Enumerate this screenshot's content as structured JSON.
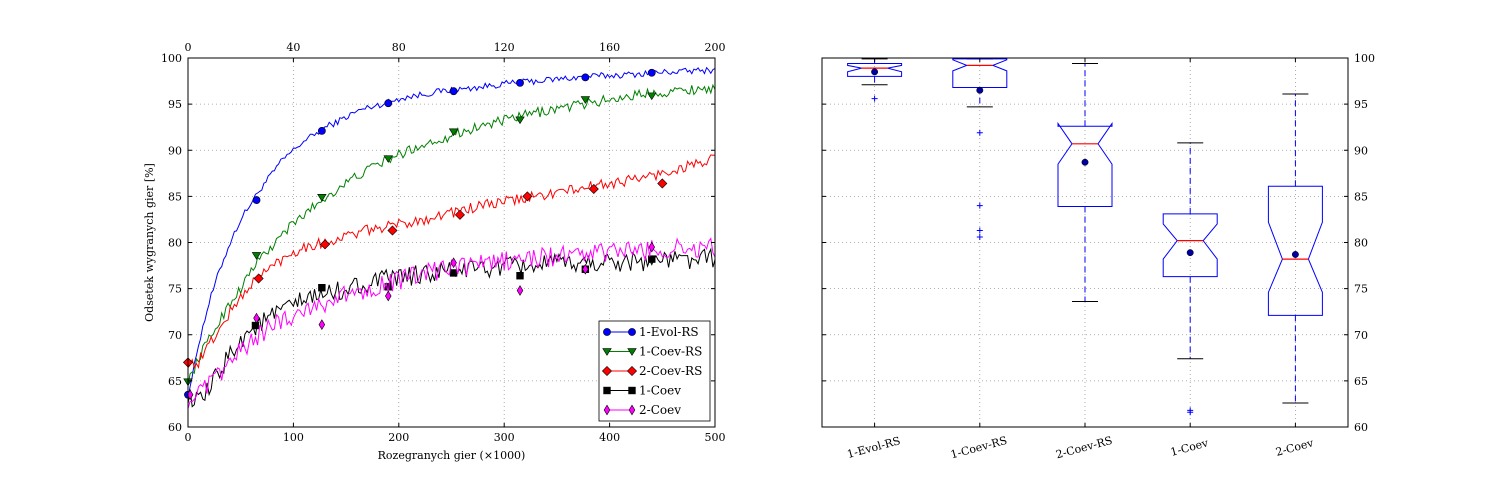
{
  "chart_data": [
    {
      "type": "line",
      "xlabel": "Rozegranych gier (×1000)",
      "ylabel": "Odsetek wygranych gier [%]",
      "xlim": [
        0,
        500
      ],
      "ylim": [
        60,
        100
      ],
      "x_ticks": [
        "0",
        "100",
        "200",
        "300",
        "400",
        "500"
      ],
      "x_top_ticks": [
        "0",
        "40",
        "80",
        "120",
        "160",
        "200"
      ],
      "x_top_lim": [
        0,
        200
      ],
      "y_ticks": [
        "60",
        "65",
        "70",
        "75",
        "80",
        "85",
        "90",
        "95",
        "100"
      ],
      "grid": true,
      "legend_position": "lower-right",
      "series": [
        {
          "name": "1-Evol-RS",
          "color": "#0000ff",
          "marker": "circle",
          "points": [
            [
              0,
              63.5
            ],
            [
              5,
              66
            ],
            [
              10,
              69
            ],
            [
              20,
              73.5
            ],
            [
              30,
              77
            ],
            [
              40,
              80
            ],
            [
              50,
              82.5
            ],
            [
              60,
              84.3
            ],
            [
              70,
              86
            ],
            [
              80,
              87.5
            ],
            [
              90,
              89
            ],
            [
              100,
              90
            ],
            [
              110,
              91
            ],
            [
              120,
              91.7
            ],
            [
              130,
              92.5
            ],
            [
              140,
              93
            ],
            [
              150,
              93.6
            ],
            [
              160,
              94.2
            ],
            [
              170,
              94.6
            ],
            [
              180,
              94.9
            ],
            [
              190,
              95.2
            ],
            [
              200,
              95.6
            ],
            [
              220,
              96
            ],
            [
              240,
              96.4
            ],
            [
              260,
              96.6
            ],
            [
              280,
              96.9
            ],
            [
              300,
              97.2
            ],
            [
              320,
              97.4
            ],
            [
              340,
              97.6
            ],
            [
              360,
              97.8
            ],
            [
              380,
              98
            ],
            [
              400,
              98.1
            ],
            [
              420,
              98.2
            ],
            [
              440,
              98.4
            ],
            [
              460,
              98.5
            ],
            [
              480,
              98.6
            ],
            [
              500,
              98.7
            ]
          ],
          "marker_points": [
            [
              0,
              63.5
            ],
            [
              65,
              84.6
            ],
            [
              127,
              92.1
            ],
            [
              190,
              95.1
            ],
            [
              252,
              96.4
            ],
            [
              315,
              97.3
            ],
            [
              377,
              97.9
            ],
            [
              440,
              98.4
            ]
          ]
        },
        {
          "name": "1-Coev-RS",
          "color": "#007f00",
          "marker": "triangle-down",
          "points": [
            [
              0,
              65
            ],
            [
              5,
              66
            ],
            [
              10,
              67.5
            ],
            [
              20,
              69.5
            ],
            [
              30,
              71.5
            ],
            [
              40,
              73.5
            ],
            [
              50,
              75
            ],
            [
              60,
              77
            ],
            [
              70,
              78.5
            ],
            [
              80,
              79.5
            ],
            [
              90,
              81
            ],
            [
              100,
              82
            ],
            [
              110,
              83
            ],
            [
              120,
              84
            ],
            [
              130,
              84.8
            ],
            [
              140,
              85.7
            ],
            [
              150,
              86.4
            ],
            [
              160,
              87.2
            ],
            [
              170,
              87.8
            ],
            [
              180,
              88.5
            ],
            [
              190,
              89
            ],
            [
              200,
              89.5
            ],
            [
              220,
              90.5
            ],
            [
              240,
              91.2
            ],
            [
              260,
              92
            ],
            [
              280,
              92.7
            ],
            [
              300,
              93.2
            ],
            [
              320,
              93.8
            ],
            [
              340,
              94.3
            ],
            [
              360,
              94.7
            ],
            [
              380,
              95.1
            ],
            [
              400,
              95.5
            ],
            [
              420,
              95.9
            ],
            [
              440,
              96.2
            ],
            [
              460,
              96.4
            ],
            [
              480,
              96.6
            ],
            [
              500,
              96.8
            ]
          ],
          "marker_points": [
            [
              0,
              64.9
            ],
            [
              65,
              78.6
            ],
            [
              127,
              84.9
            ],
            [
              190,
              89.1
            ],
            [
              252,
              92
            ],
            [
              315,
              93.3
            ],
            [
              377,
              95.5
            ],
            [
              440,
              95.9
            ]
          ]
        },
        {
          "name": "2-Coev-RS",
          "color": "#ff0000",
          "marker": "diamond",
          "points": [
            [
              0,
              67
            ],
            [
              5,
              66.8
            ],
            [
              10,
              67
            ],
            [
              20,
              69
            ],
            [
              30,
              70.5
            ],
            [
              40,
              72.5
            ],
            [
              50,
              74
            ],
            [
              60,
              75.5
            ],
            [
              70,
              76.5
            ],
            [
              80,
              77.5
            ],
            [
              90,
              78.2
            ],
            [
              100,
              79
            ],
            [
              110,
              79.5
            ],
            [
              120,
              79.8
            ],
            [
              130,
              80
            ],
            [
              140,
              80.3
            ],
            [
              150,
              80.7
            ],
            [
              160,
              81
            ],
            [
              170,
              81.3
            ],
            [
              180,
              81.6
            ],
            [
              190,
              81.7
            ],
            [
              200,
              82
            ],
            [
              220,
              82.4
            ],
            [
              240,
              83
            ],
            [
              260,
              83.5
            ],
            [
              280,
              84
            ],
            [
              300,
              84.4
            ],
            [
              320,
              84.8
            ],
            [
              340,
              85.2
            ],
            [
              360,
              85.6
            ],
            [
              380,
              86
            ],
            [
              400,
              86.4
            ],
            [
              420,
              86.8
            ],
            [
              440,
              87.2
            ],
            [
              460,
              87.8
            ],
            [
              480,
              88.5
            ],
            [
              500,
              89
            ]
          ],
          "marker_points": [
            [
              0,
              67
            ],
            [
              67,
              76.1
            ],
            [
              130,
              79.8
            ],
            [
              194,
              81.3
            ],
            [
              258,
              83
            ],
            [
              322,
              85
            ],
            [
              385,
              85.8
            ],
            [
              450,
              86.4
            ]
          ]
        },
        {
          "name": "1-Coev",
          "color": "#000000",
          "marker": "square",
          "points": [
            [
              0,
              63.5
            ],
            [
              5,
              63
            ],
            [
              10,
              62.5
            ],
            [
              20,
              64
            ],
            [
              30,
              66
            ],
            [
              40,
              68
            ],
            [
              50,
              69.5
            ],
            [
              60,
              70.5
            ],
            [
              70,
              71.3
            ],
            [
              80,
              72
            ],
            [
              90,
              72.7
            ],
            [
              100,
              73.2
            ],
            [
              110,
              73.7
            ],
            [
              120,
              74.1
            ],
            [
              130,
              74.4
            ],
            [
              140,
              74.7
            ],
            [
              150,
              75
            ],
            [
              160,
              75.3
            ],
            [
              170,
              75.6
            ],
            [
              180,
              75.8
            ],
            [
              190,
              76
            ],
            [
              200,
              76.2
            ],
            [
              220,
              76.5
            ],
            [
              240,
              76.8
            ],
            [
              260,
              77
            ],
            [
              280,
              77.2
            ],
            [
              300,
              77.3
            ],
            [
              320,
              77.5
            ],
            [
              340,
              77.6
            ],
            [
              360,
              77.7
            ],
            [
              380,
              77.8
            ],
            [
              400,
              77.9
            ],
            [
              420,
              78
            ],
            [
              440,
              78
            ],
            [
              460,
              78.1
            ],
            [
              480,
              78.2
            ],
            [
              500,
              78.2
            ]
          ],
          "marker_points": [
            [
              64,
              71
            ],
            [
              127,
              75.1
            ],
            [
              190,
              75.2
            ],
            [
              252,
              76.7
            ],
            [
              315,
              76.4
            ],
            [
              377,
              77.1
            ],
            [
              440,
              78.2
            ]
          ]
        },
        {
          "name": "2-Coev",
          "color": "#ff00ff",
          "marker": "diamond-thin",
          "points": [
            [
              0,
              63
            ],
            [
              5,
              63.2
            ],
            [
              10,
              63.5
            ],
            [
              20,
              64.5
            ],
            [
              30,
              65.8
            ],
            [
              40,
              67
            ],
            [
              50,
              68.2
            ],
            [
              60,
              69.3
            ],
            [
              70,
              70.2
            ],
            [
              80,
              71
            ],
            [
              90,
              71.6
            ],
            [
              100,
              72.2
            ],
            [
              110,
              72.7
            ],
            [
              120,
              73.1
            ],
            [
              130,
              73.5
            ],
            [
              140,
              73.9
            ],
            [
              150,
              74.3
            ],
            [
              160,
              74.6
            ],
            [
              170,
              75
            ],
            [
              180,
              75.3
            ],
            [
              190,
              75.6
            ],
            [
              200,
              75.9
            ],
            [
              220,
              76.5
            ],
            [
              240,
              77
            ],
            [
              260,
              77.4
            ],
            [
              280,
              77.7
            ],
            [
              300,
              78
            ],
            [
              320,
              78.2
            ],
            [
              340,
              78.4
            ],
            [
              360,
              78.6
            ],
            [
              380,
              78.8
            ],
            [
              400,
              79
            ],
            [
              420,
              79.1
            ],
            [
              440,
              79.2
            ],
            [
              460,
              79.3
            ],
            [
              480,
              79.4
            ],
            [
              500,
              79.4
            ]
          ],
          "marker_points": [
            [
              2,
              63.5
            ],
            [
              65,
              71.8
            ],
            [
              127,
              71.1
            ],
            [
              190,
              74.2
            ],
            [
              252,
              77.8
            ],
            [
              315,
              74.8
            ],
            [
              377,
              77.1
            ],
            [
              440,
              79.5
            ]
          ]
        }
      ]
    },
    {
      "type": "box",
      "categories": [
        "1-Evol-RS",
        "1-Coev-RS",
        "2-Coev-RS",
        "1-Coev",
        "2-Coev"
      ],
      "ylim": [
        60,
        100
      ],
      "y_ticks": [
        "60",
        "65",
        "70",
        "75",
        "80",
        "85",
        "90",
        "95",
        "100"
      ],
      "y_axis_side": "right",
      "grid": true,
      "box_color": "#0000ff",
      "median_color": "#ff0000",
      "boxes": [
        {
          "name": "1-Evol-RS",
          "whisker_low": 97.1,
          "q1": 98.0,
          "median": 98.9,
          "q3": 99.4,
          "whisker_high": 99.9,
          "mean": 98.5,
          "notch_low": 98.5,
          "notch_high": 99.2,
          "outliers": [
            95.6
          ]
        },
        {
          "name": "1-Coev-RS",
          "whisker_low": 94.7,
          "q1": 96.8,
          "median": 99.2,
          "q3": 99.9,
          "whisker_high": 99.9,
          "mean": 96.5,
          "notch_low": 98.6,
          "notch_high": 99.8,
          "outliers": [
            91.9,
            84.0,
            81.3,
            80.6
          ]
        },
        {
          "name": "2-Coev-RS",
          "whisker_low": 73.6,
          "q1": 83.9,
          "median": 90.7,
          "q3": 92.6,
          "whisker_high": 99.4,
          "mean": 88.7,
          "notch_low": 88.5,
          "notch_high": 92.9,
          "outliers": []
        },
        {
          "name": "1-Coev",
          "whisker_low": 67.4,
          "q1": 76.3,
          "median": 80.2,
          "q3": 83.1,
          "whisker_high": 90.8,
          "mean": 78.9,
          "notch_low": 78.2,
          "notch_high": 82.0,
          "outliers": [
            61.8,
            61.6
          ]
        },
        {
          "name": "2-Coev",
          "whisker_low": 62.6,
          "q1": 72.1,
          "median": 78.2,
          "q3": 86.1,
          "whisker_high": 96.1,
          "mean": 78.7,
          "notch_low": 74.6,
          "notch_high": 82.2,
          "outliers": []
        }
      ]
    }
  ]
}
